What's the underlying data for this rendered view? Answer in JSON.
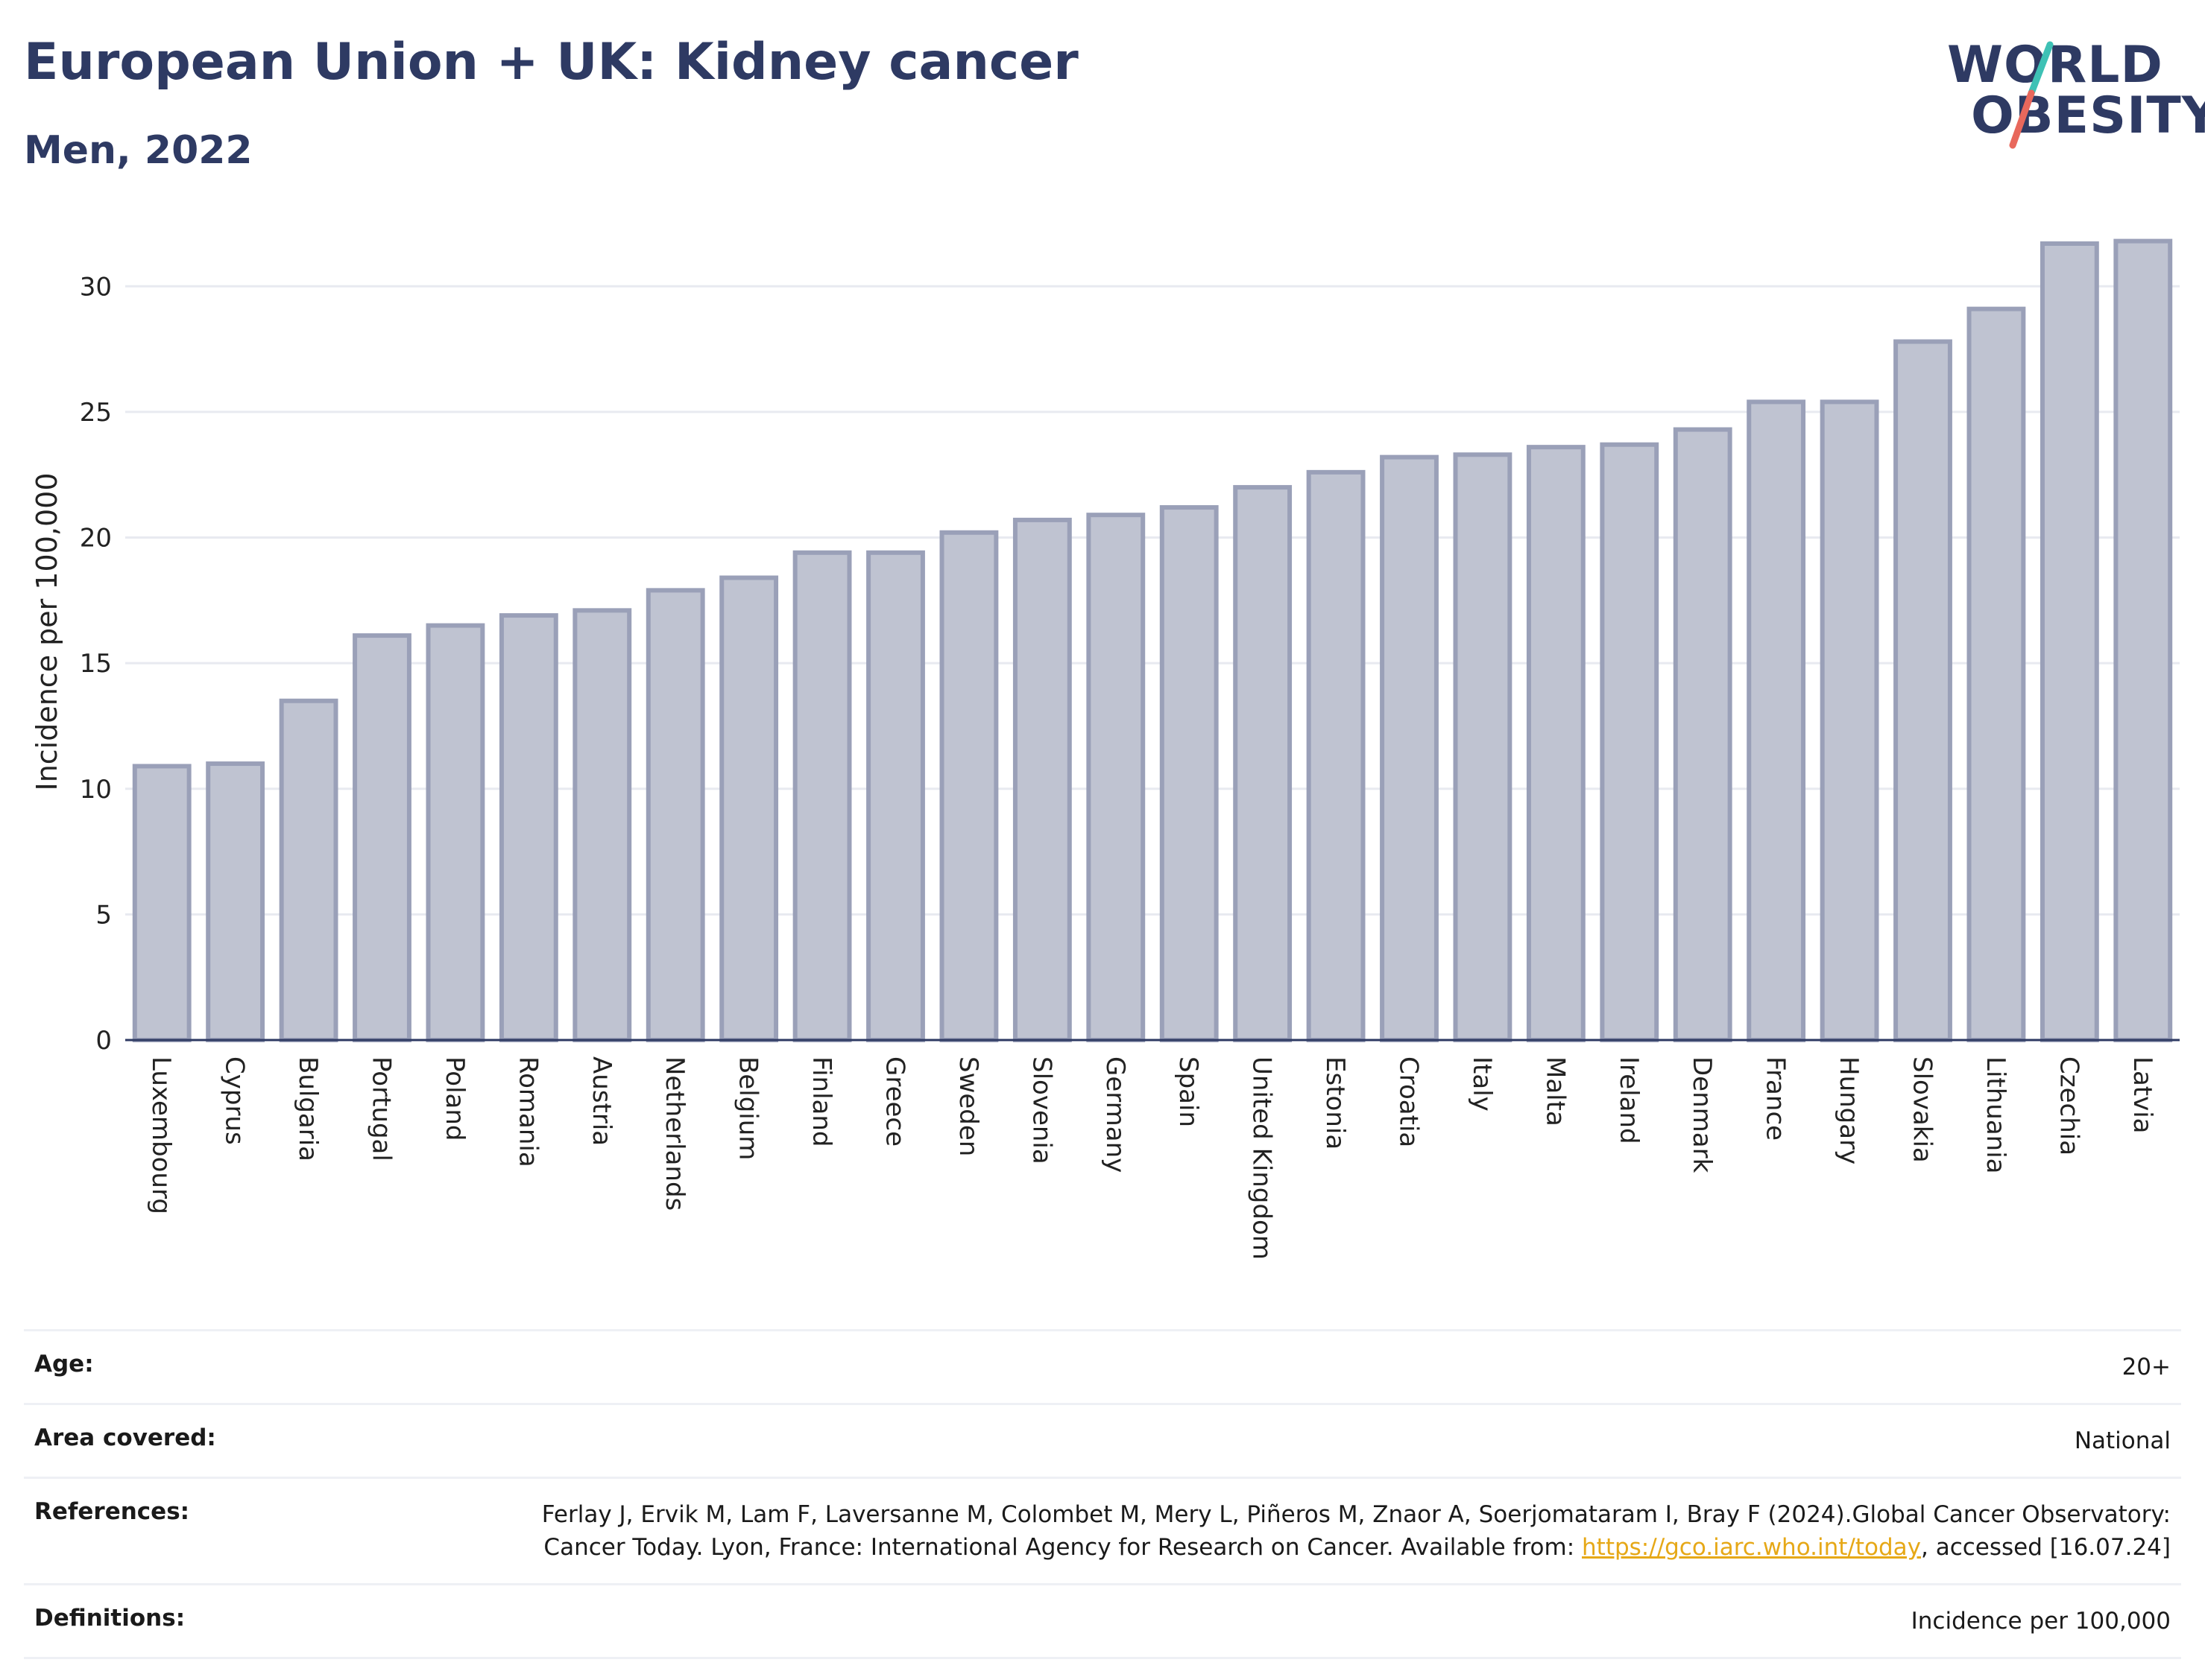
{
  "header": {
    "title": "European Union + UK: Kidney cancer",
    "subtitle": "Men, 2022"
  },
  "logo": {
    "line1": "WORLD",
    "line2": "OBESITY"
  },
  "colors": {
    "bar_fill": "#bfc3d1",
    "bar_stroke": "#9aa0b8",
    "title": "#2e3a63",
    "logo_slash_top": "#3ec1b5",
    "logo_slash_bottom": "#e8685c",
    "link": "#e6a817"
  },
  "chart_data": {
    "type": "bar",
    "title": "European Union + UK: Kidney cancer",
    "subtitle": "Men, 2022",
    "xlabel": "",
    "ylabel": "Incidence per 100,000",
    "ylim": [
      0,
      32.5
    ],
    "yticks": [
      0,
      5,
      10,
      15,
      20,
      25,
      30
    ],
    "grid": true,
    "legend": "none",
    "categories": [
      "Luxembourg",
      "Cyprus",
      "Bulgaria",
      "Portugal",
      "Poland",
      "Romania",
      "Austria",
      "Netherlands",
      "Belgium",
      "Finland",
      "Greece",
      "Sweden",
      "Slovenia",
      "Germany",
      "Spain",
      "United Kingdom",
      "Estonia",
      "Croatia",
      "Italy",
      "Malta",
      "Ireland",
      "Denmark",
      "France",
      "Hungary",
      "Slovakia",
      "Lithuania",
      "Czechia",
      "Latvia"
    ],
    "values": [
      10.9,
      11.0,
      13.5,
      16.1,
      16.5,
      16.9,
      17.1,
      17.9,
      18.4,
      19.4,
      19.4,
      20.2,
      20.7,
      20.9,
      21.2,
      22.0,
      22.6,
      23.2,
      23.3,
      23.6,
      23.7,
      24.3,
      25.4,
      25.4,
      27.8,
      29.1,
      31.7,
      31.8
    ]
  },
  "meta": {
    "age_label": "Age:",
    "age_value": "20+",
    "area_label": "Area covered:",
    "area_value": "National",
    "references_label": "References:",
    "references_text_1": "Ferlay J, Ervik M, Lam F, Laversanne M, Colombet M, Mery L, Piñeros M, Znaor A, Soerjomataram I, Bray F (2024).Global Cancer Observatory: Cancer Today. Lyon, France: International Agency for Research on Cancer. Available from: ",
    "references_link": "https://gco.iarc.who.int/today",
    "references_text_2": ", accessed [16.07.24]",
    "definitions_label": "Definitions:",
    "definitions_value": "Incidence per 100,000"
  }
}
